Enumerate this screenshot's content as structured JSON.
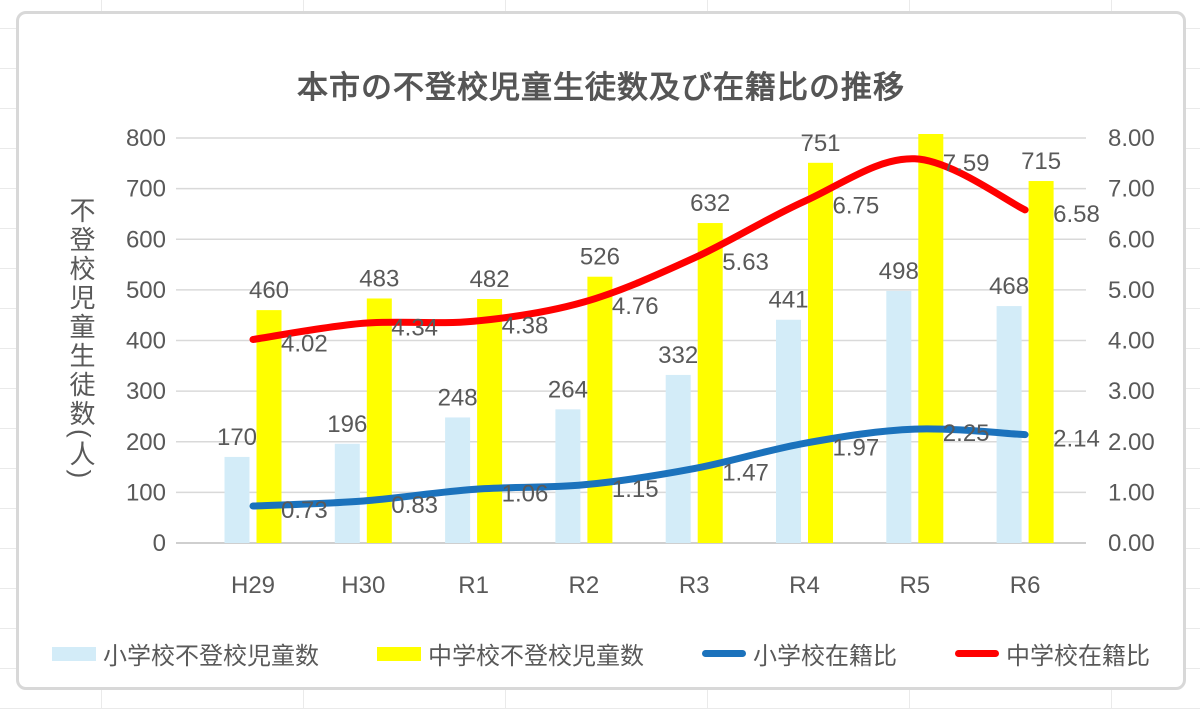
{
  "chart_data": {
    "type": "combo-bar-line",
    "title": "本市の不登校児童生徒数及び在籍比の推移",
    "categories": [
      "H29",
      "H30",
      "R1",
      "R2",
      "R3",
      "R4",
      "R5",
      "R6"
    ],
    "series": [
      {
        "name": "小学校不登校児童数",
        "kind": "bar",
        "axis": "left",
        "color": "#D3ECF8",
        "values": [
          170,
          196,
          248,
          264,
          332,
          441,
          498,
          468
        ],
        "labels": [
          "170",
          "196",
          "248",
          "264",
          "332",
          "441",
          "498",
          "468"
        ]
      },
      {
        "name": "中学校不登校児童数",
        "kind": "bar",
        "axis": "left",
        "color": "#FFFF00",
        "values": [
          460,
          483,
          482,
          526,
          632,
          751,
          null,
          715
        ],
        "labels": [
          "460",
          "483",
          "482",
          "526",
          "632",
          "751",
          "",
          "715"
        ],
        "note": "R5 bar exceeds the 800 axis maximum; it is clipped at the top of the plot area and its data label is not shown"
      },
      {
        "name": "小学校在籍比",
        "kind": "line",
        "axis": "right",
        "color": "#1B72BC",
        "values": [
          0.73,
          0.83,
          1.06,
          1.15,
          1.47,
          1.97,
          2.25,
          2.14
        ],
        "labels": [
          "0.73",
          "0.83",
          "1.06",
          "1.15",
          "1.47",
          "1.97",
          "2.25",
          "2.14"
        ]
      },
      {
        "name": "中学校在籍比",
        "kind": "line",
        "axis": "right",
        "color": "#FF0000",
        "values": [
          4.02,
          4.34,
          4.38,
          4.76,
          5.63,
          6.75,
          7.59,
          6.58
        ],
        "labels": [
          "4.02",
          "4.34",
          "4.38",
          "4.76",
          "5.63",
          "6.75",
          "7.59",
          "6.58"
        ]
      }
    ],
    "left_axis": {
      "title": "不登校児童生徒数(人)",
      "min": 0,
      "max": 800,
      "step": 100,
      "tick_labels": [
        "0",
        "100",
        "200",
        "300",
        "400",
        "500",
        "600",
        "700",
        "800"
      ]
    },
    "right_axis": {
      "min": 0,
      "max": 8,
      "step": 1,
      "tick_labels": [
        "0.00",
        "1.00",
        "2.00",
        "3.00",
        "4.00",
        "5.00",
        "6.00",
        "7.00",
        "8.00"
      ]
    },
    "grid": "horizontal",
    "legend_position": "bottom",
    "colors": {
      "grid": "#D9D9D9",
      "axis_line": "#BFBFBF",
      "text": "#595959"
    }
  }
}
